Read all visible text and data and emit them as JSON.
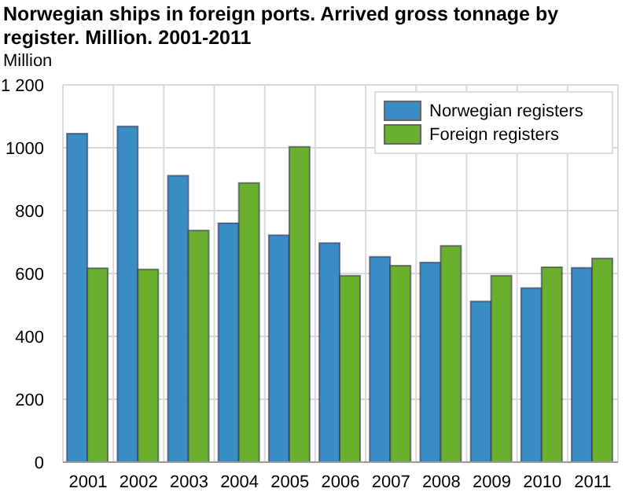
{
  "chart_data": {
    "type": "bar",
    "title": "Norwegian ships in foreign ports. Arrived gross tonnage by register. Million. 2001-2011",
    "ylabel": "Million",
    "categories": [
      "2001",
      "2002",
      "2003",
      "2004",
      "2005",
      "2006",
      "2007",
      "2008",
      "2009",
      "2010",
      "2011"
    ],
    "series": [
      {
        "name": "Norwegian registers",
        "color": "#3a8cc4",
        "values": [
          1045,
          1068,
          911,
          760,
          722,
          697,
          653,
          635,
          511,
          554,
          618
        ]
      },
      {
        "name": "Foreign registers",
        "color": "#6ab02e",
        "values": [
          617,
          613,
          737,
          888,
          1003,
          593,
          625,
          688,
          593,
          620,
          648
        ]
      }
    ],
    "ylim": [
      0,
      1200
    ],
    "yticks": [
      0,
      200,
      400,
      600,
      800,
      1000,
      {
        "value": 1200,
        "label": "1 200"
      }
    ],
    "grid": true,
    "legend": "top right"
  }
}
